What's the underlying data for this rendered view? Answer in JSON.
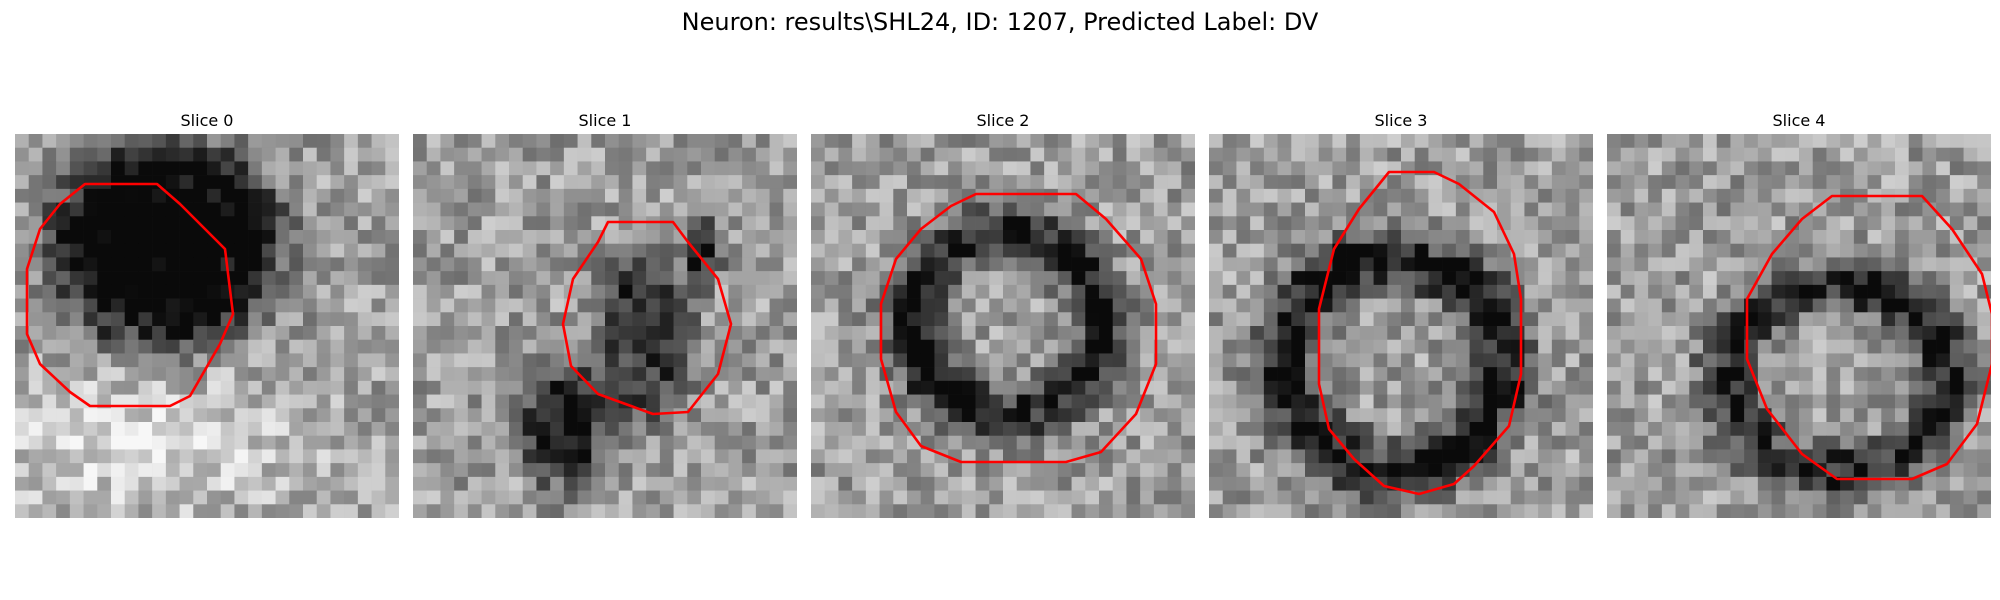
{
  "figure": {
    "title": "Neuron: results\\SHL24, ID: 1207, Predicted Label: DV",
    "outline_color": "#ff0000"
  },
  "slices": [
    {
      "title": "Slice 0",
      "image": "grayscale-micrograph-slice-0"
    },
    {
      "title": "Slice 1",
      "image": "grayscale-micrograph-slice-1"
    },
    {
      "title": "Slice 2",
      "image": "grayscale-micrograph-slice-2"
    },
    {
      "title": "Slice 3",
      "image": "grayscale-micrograph-slice-3"
    },
    {
      "title": "Slice 4",
      "image": "grayscale-micrograph-slice-4"
    }
  ]
}
